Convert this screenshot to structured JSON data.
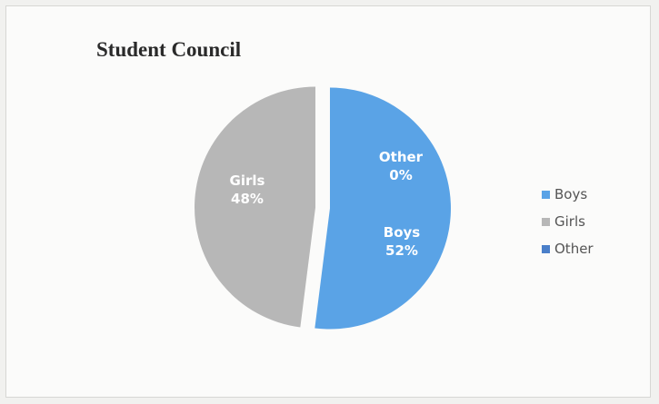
{
  "chart_data": {
    "type": "pie",
    "title": "Student Council",
    "categories": [
      "Boys",
      "Girls",
      "Other"
    ],
    "values": [
      52,
      48,
      0
    ],
    "unit": "%",
    "colors": [
      "#5aa3e6",
      "#b7b7b7",
      "#4a7fc9"
    ],
    "data_labels": [
      {
        "name": "Boys",
        "value": "52%"
      },
      {
        "name": "Girls",
        "value": "48%"
      },
      {
        "name": "Other",
        "value": "0%"
      }
    ],
    "legend": {
      "position": "right",
      "entries": [
        "Boys",
        "Girls",
        "Other"
      ]
    },
    "exploded": true
  }
}
